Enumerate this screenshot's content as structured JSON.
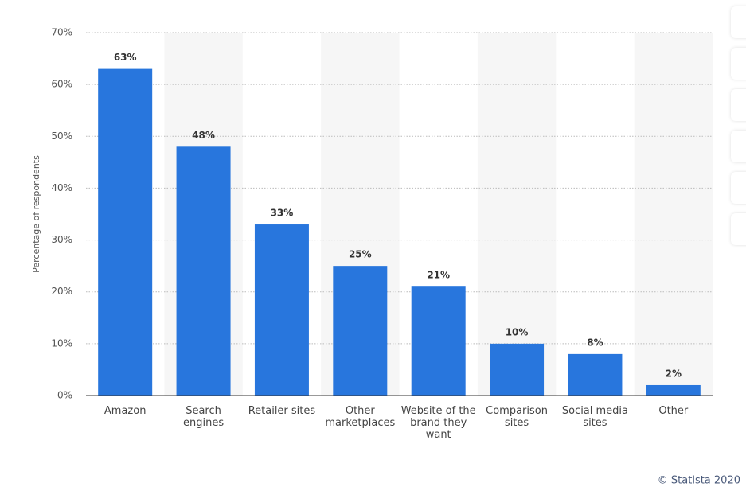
{
  "chart_data": {
    "type": "bar",
    "y_label": "Percentage of respondents",
    "categories": [
      "Amazon",
      "Search engines",
      "Retailer sites",
      "Other marketplaces",
      "Website of the brand they want",
      "Comparison sites",
      "Social media sites",
      "Other"
    ],
    "values": [
      63,
      48,
      33,
      25,
      21,
      10,
      8,
      2
    ],
    "value_labels": [
      "63%",
      "48%",
      "33%",
      "25%",
      "21%",
      "10%",
      "8%",
      "2%"
    ],
    "color": "#2876dd",
    "ylim": [
      0,
      70
    ],
    "yticks": [
      {
        "value": 0,
        "label": "0%"
      },
      {
        "value": 10,
        "label": "10%"
      },
      {
        "value": 20,
        "label": "20%"
      },
      {
        "value": 30,
        "label": "30%"
      },
      {
        "value": 40,
        "label": "40%"
      },
      {
        "value": 50,
        "label": "50%"
      },
      {
        "value": 60,
        "label": "60%"
      },
      {
        "value": 70,
        "label": "70%"
      }
    ],
    "grid": true,
    "source": "© Statista 2020"
  }
}
